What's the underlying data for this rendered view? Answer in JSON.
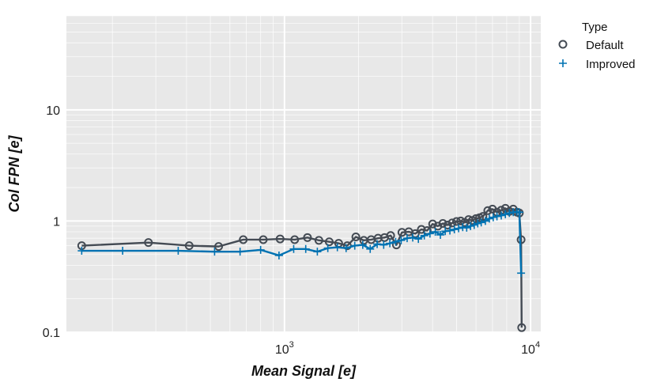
{
  "chart_data": {
    "type": "line",
    "xlabel": "Mean Signal [e]",
    "ylabel": "Col FPN [e]",
    "x_scale": "log",
    "y_scale": "log",
    "xlim": [
      130,
      11000
    ],
    "ylim": [
      0.1,
      70
    ],
    "x_ticks": [
      {
        "value": 1000,
        "base": "10",
        "exp": "3"
      },
      {
        "value": 10000,
        "base": "10",
        "exp": "4"
      }
    ],
    "y_ticks": [
      {
        "value": 0.1,
        "label": "0.1"
      },
      {
        "value": 1,
        "label": "1"
      },
      {
        "value": 10,
        "label": "10"
      }
    ],
    "grid": true,
    "background": "#e8e8e8",
    "legend": {
      "title": "Type",
      "position": "right",
      "entries": [
        {
          "label": "Default",
          "marker": "circle",
          "color": "#444b54"
        },
        {
          "label": "Improved",
          "marker": "plus",
          "color": "#0072b2"
        }
      ]
    },
    "series": [
      {
        "name": "Default",
        "color": "#444b54",
        "marker": "circle",
        "x": [
          150,
          280,
          410,
          540,
          680,
          820,
          960,
          1100,
          1240,
          1380,
          1520,
          1660,
          1800,
          1950,
          2100,
          2250,
          2400,
          2550,
          2700,
          2850,
          3000,
          3200,
          3400,
          3600,
          3800,
          4000,
          4200,
          4400,
          4600,
          4800,
          5000,
          5200,
          5400,
          5600,
          5800,
          6000,
          6200,
          6400,
          6700,
          7000,
          7300,
          7600,
          7900,
          8200,
          8500,
          8800,
          9000,
          9150,
          9200
        ],
        "y": [
          0.6,
          0.64,
          0.6,
          0.59,
          0.68,
          0.68,
          0.69,
          0.68,
          0.71,
          0.67,
          0.65,
          0.63,
          0.6,
          0.72,
          0.67,
          0.68,
          0.7,
          0.71,
          0.74,
          0.61,
          0.79,
          0.8,
          0.77,
          0.84,
          0.82,
          0.94,
          0.9,
          0.95,
          0.92,
          0.96,
          0.99,
          1.0,
          0.97,
          1.03,
          1.01,
          1.05,
          1.07,
          1.1,
          1.24,
          1.28,
          1.2,
          1.25,
          1.3,
          1.22,
          1.28,
          1.2,
          1.18,
          0.68,
          0.11
        ]
      },
      {
        "name": "Improved",
        "color": "#0072b2",
        "marker": "plus",
        "x": [
          150,
          220,
          370,
          520,
          660,
          800,
          950,
          1090,
          1220,
          1360,
          1500,
          1640,
          1780,
          1930,
          2080,
          2230,
          2380,
          2530,
          2680,
          2830,
          2980,
          3150,
          3320,
          3500,
          3700,
          3900,
          4100,
          4300,
          4500,
          4700,
          4900,
          5100,
          5300,
          5500,
          5700,
          5900,
          6100,
          6300,
          6550,
          6800,
          7050,
          7300,
          7600,
          7900,
          8200,
          8500,
          8800,
          9000,
          9150
        ],
        "y": [
          0.54,
          0.54,
          0.54,
          0.53,
          0.53,
          0.55,
          0.49,
          0.56,
          0.56,
          0.53,
          0.57,
          0.58,
          0.57,
          0.6,
          0.61,
          0.56,
          0.62,
          0.61,
          0.63,
          0.65,
          0.67,
          0.7,
          0.71,
          0.69,
          0.74,
          0.77,
          0.8,
          0.75,
          0.81,
          0.82,
          0.84,
          0.86,
          0.88,
          0.87,
          0.9,
          0.92,
          0.95,
          0.97,
          1.0,
          1.05,
          1.08,
          1.1,
          1.12,
          1.15,
          1.18,
          1.2,
          1.21,
          1.2,
          0.34
        ]
      }
    ]
  }
}
